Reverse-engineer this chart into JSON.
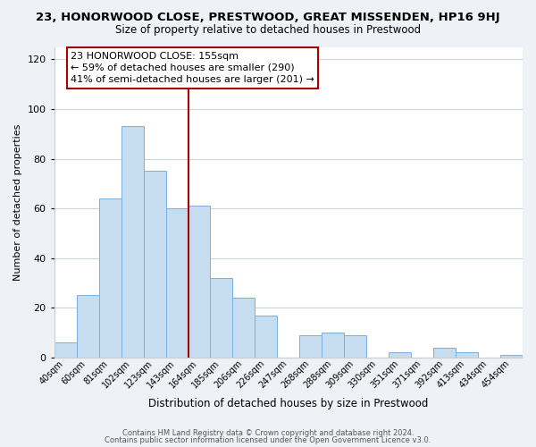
{
  "title": "23, HONORWOOD CLOSE, PRESTWOOD, GREAT MISSENDEN, HP16 9HJ",
  "subtitle": "Size of property relative to detached houses in Prestwood",
  "xlabel": "Distribution of detached houses by size in Prestwood",
  "ylabel": "Number of detached properties",
  "bar_labels": [
    "40sqm",
    "60sqm",
    "81sqm",
    "102sqm",
    "123sqm",
    "143sqm",
    "164sqm",
    "185sqm",
    "206sqm",
    "226sqm",
    "247sqm",
    "268sqm",
    "288sqm",
    "309sqm",
    "330sqm",
    "351sqm",
    "371sqm",
    "392sqm",
    "413sqm",
    "434sqm",
    "454sqm"
  ],
  "bar_values": [
    6,
    25,
    64,
    93,
    75,
    60,
    61,
    32,
    24,
    17,
    0,
    9,
    10,
    9,
    0,
    2,
    0,
    4,
    2,
    0,
    1
  ],
  "bar_color": "#c6ddf0",
  "bar_edge_color": "#7aafe0",
  "annotation_line1": "23 HONORWOOD CLOSE: 155sqm",
  "annotation_line2": "← 59% of detached houses are smaller (290)",
  "annotation_line3": "41% of semi-detached houses are larger (201) →",
  "marker_color": "#aa0000",
  "marker_xpos_index": 6,
  "ylim": [
    0,
    125
  ],
  "yticks": [
    0,
    20,
    40,
    60,
    80,
    100,
    120
  ],
  "footer_line1": "Contains HM Land Registry data © Crown copyright and database right 2024.",
  "footer_line2": "Contains public sector information licensed under the Open Government Licence v3.0.",
  "bg_color": "#eef2f7",
  "plot_bg_color": "#ffffff",
  "grid_color": "#c8d4e0"
}
